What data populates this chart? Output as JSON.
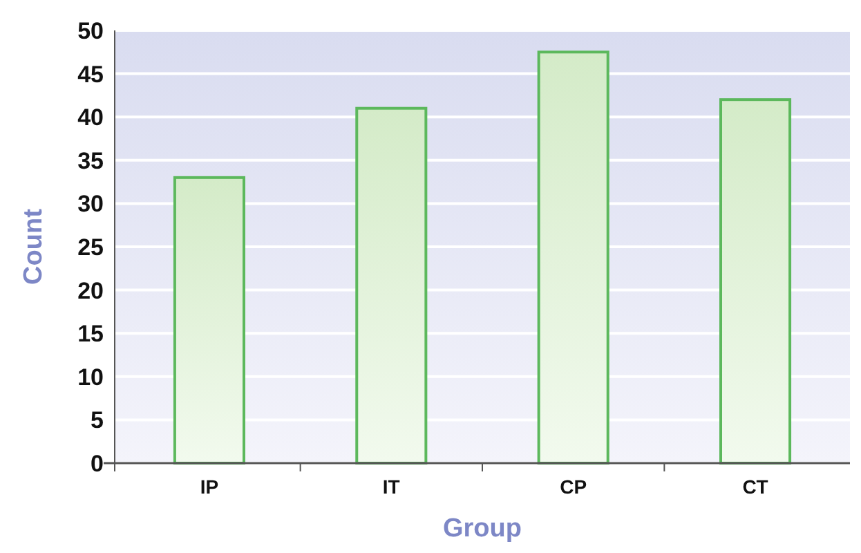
{
  "chart_data": {
    "type": "bar",
    "xlabel": "Group",
    "ylabel": "Count",
    "categories": [
      "IP",
      "IT",
      "CP",
      "CT"
    ],
    "values": [
      33,
      41,
      47.5,
      42
    ],
    "color": "#5cb85c",
    "ylim": [
      0,
      50
    ],
    "yticks": [
      0,
      5,
      10,
      15,
      20,
      25,
      30,
      35,
      40,
      45,
      50
    ],
    "grid": "y"
  }
}
